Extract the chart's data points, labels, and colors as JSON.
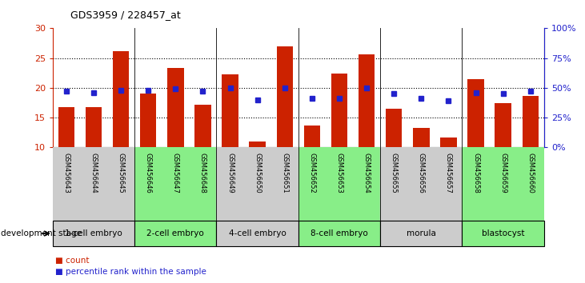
{
  "title": "GDS3959 / 228457_at",
  "samples": [
    "GSM456643",
    "GSM456644",
    "GSM456645",
    "GSM456646",
    "GSM456647",
    "GSM456648",
    "GSM456649",
    "GSM456650",
    "GSM456651",
    "GSM456652",
    "GSM456653",
    "GSM456654",
    "GSM456655",
    "GSM456656",
    "GSM456657",
    "GSM456658",
    "GSM456659",
    "GSM456660"
  ],
  "counts": [
    16.8,
    16.7,
    26.1,
    19.0,
    23.3,
    17.2,
    22.3,
    10.9,
    27.0,
    13.7,
    22.4,
    25.6,
    16.5,
    13.3,
    11.6,
    21.5,
    17.4,
    18.6
  ],
  "percentiles": [
    47,
    46,
    48,
    48,
    49,
    47,
    50,
    40,
    50,
    41,
    41,
    50,
    45,
    41,
    39,
    46,
    45,
    47
  ],
  "bar_color": "#CC2200",
  "dot_color": "#2222CC",
  "ylim_left": [
    10,
    30
  ],
  "ylim_right": [
    0,
    100
  ],
  "yticks_left": [
    10,
    15,
    20,
    25,
    30
  ],
  "yticks_right": [
    0,
    25,
    50,
    75,
    100
  ],
  "ytick_labels_right": [
    "0%",
    "25%",
    "50%",
    "75%",
    "100%"
  ],
  "stages": [
    {
      "label": "1-cell embryo",
      "start": 0,
      "end": 3,
      "color": "#cccccc"
    },
    {
      "label": "2-cell embryo",
      "start": 3,
      "end": 6,
      "color": "#88ee88"
    },
    {
      "label": "4-cell embryo",
      "start": 6,
      "end": 9,
      "color": "#cccccc"
    },
    {
      "label": "8-cell embryo",
      "start": 9,
      "end": 12,
      "color": "#88ee88"
    },
    {
      "label": "morula",
      "start": 12,
      "end": 15,
      "color": "#cccccc"
    },
    {
      "label": "blastocyst",
      "start": 15,
      "end": 18,
      "color": "#88ee88"
    }
  ],
  "legend_count_label": "count",
  "legend_percentile_label": "percentile rank within the sample",
  "xlabel_stage": "development stage",
  "background_color": "#ffffff",
  "tick_area_color": "#bbbbbb"
}
